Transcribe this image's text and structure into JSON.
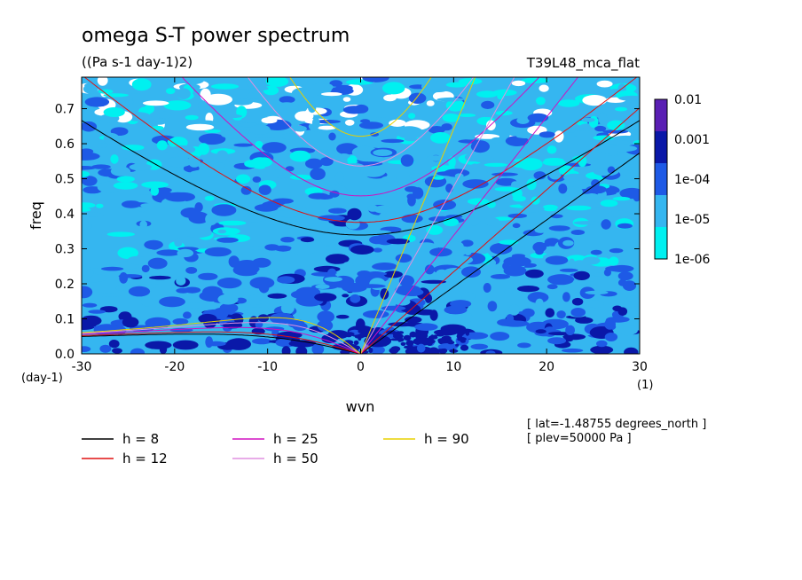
{
  "header": {
    "title": "omega S-T power spectrum",
    "units": "((Pa s-1 day-1)2)",
    "experiment": "T39L48_mca_flat"
  },
  "info": {
    "lat": "[ lat=-1.48755 degrees_north ]",
    "plev": "[ plev=50000 Pa ]"
  },
  "chart_data": {
    "type": "heatmap",
    "title": "omega S-T power spectrum",
    "subtitle": "((Pa s-1 day-1)2)",
    "xlabel": "wvn",
    "ylabel": "freq",
    "x_unit_label": "(1)",
    "y_unit_label": "(day-1)",
    "xlim": [
      -30,
      30
    ],
    "ylim": [
      0,
      0.79
    ],
    "xticks": [
      -30,
      -20,
      -10,
      0,
      10,
      20,
      30
    ],
    "yticks": [
      0.0,
      0.1,
      0.2,
      0.3,
      0.4,
      0.5,
      0.6,
      0.7
    ],
    "xtick_labels": [
      "-30",
      "-20",
      "-10",
      "0",
      "10",
      "20",
      "30"
    ],
    "ytick_labels": [
      "0.0",
      "0.1",
      "0.2",
      "0.3",
      "0.4",
      "0.5",
      "0.6",
      "0.7"
    ],
    "colorbar": {
      "levels": [
        "0.01",
        "0.001",
        "1e-04",
        "1e-05",
        "1e-06"
      ],
      "colors": [
        "#5a1fb4",
        "#0a18a8",
        "#1e5ae6",
        "#35b6f0",
        "#00f0f0"
      ]
    },
    "dispersion_curves": [
      {
        "label": "h =  8",
        "h": 8,
        "color": "#000000"
      },
      {
        "label": "h = 12",
        "h": 12,
        "color": "#e01010"
      },
      {
        "label": "h = 25",
        "h": 25,
        "color": "#d010c0"
      },
      {
        "label": "h = 50",
        "h": 50,
        "color": "#e090e0"
      },
      {
        "label": "h = 90",
        "h": 90,
        "color": "#e8d000"
      }
    ]
  }
}
